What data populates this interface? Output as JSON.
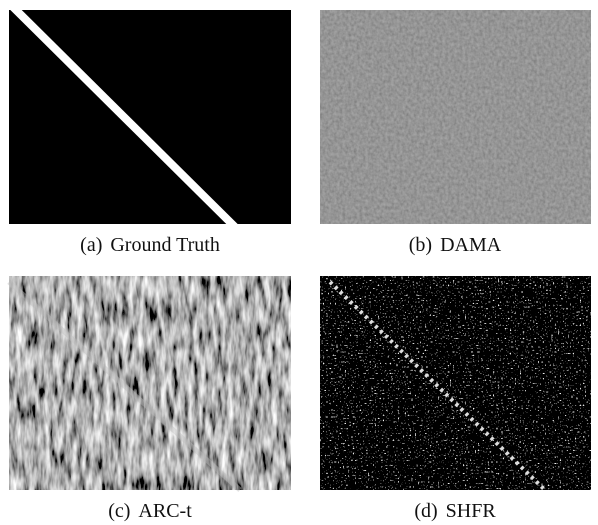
{
  "panels": [
    {
      "label": "(a)",
      "caption": "Ground Truth"
    },
    {
      "label": "(b)",
      "caption": "DAMA"
    },
    {
      "label": "(c)",
      "caption": "ARC-t"
    },
    {
      "label": "(d)",
      "caption": "SHFR"
    }
  ]
}
